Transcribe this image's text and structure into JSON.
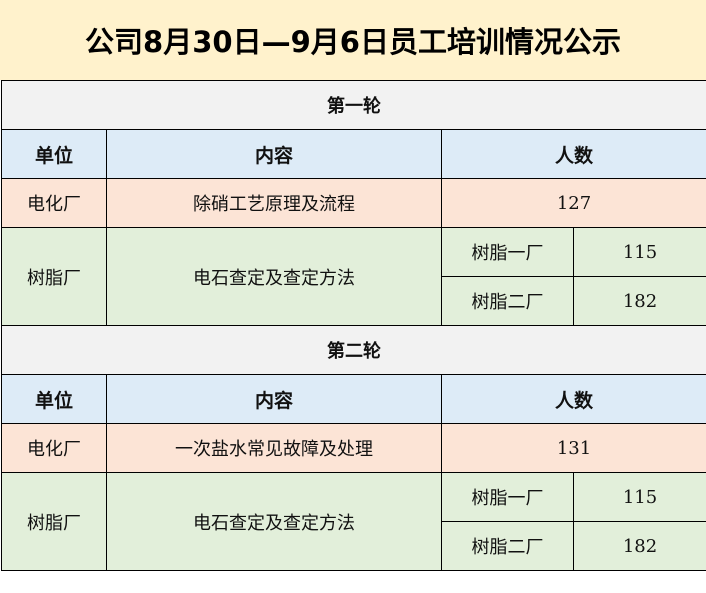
{
  "title": "公司8月30日—9月6日员工培训情况公示",
  "headers": {
    "unit": "单位",
    "content": "内容",
    "count": "人数"
  },
  "rounds": [
    {
      "label": "第一轮",
      "row1": {
        "unit": "电化厂",
        "content": "除硝工艺原理及流程",
        "count": "127"
      },
      "row2": {
        "unit": "树脂厂",
        "content": "电石查定及查定方法",
        "sub": [
          {
            "name": "树脂一厂",
            "count": "115"
          },
          {
            "name": "树脂二厂",
            "count": "182"
          }
        ]
      }
    },
    {
      "label": "第二轮",
      "row1": {
        "unit": "电化厂",
        "content": "一次盐水常见故障及处理",
        "count": "131"
      },
      "row2": {
        "unit": "树脂厂",
        "content": "电石查定及查定方法",
        "sub": [
          {
            "name": "树脂一厂",
            "count": "115"
          },
          {
            "name": "树脂二厂",
            "count": "182"
          }
        ]
      }
    }
  ],
  "colors": {
    "title_bg": "#fff2cc",
    "round_bg": "#f2f2f2",
    "header_bg": "#ddebf7",
    "row1_bg": "#fce4d6",
    "row2_bg": "#e2efda"
  }
}
